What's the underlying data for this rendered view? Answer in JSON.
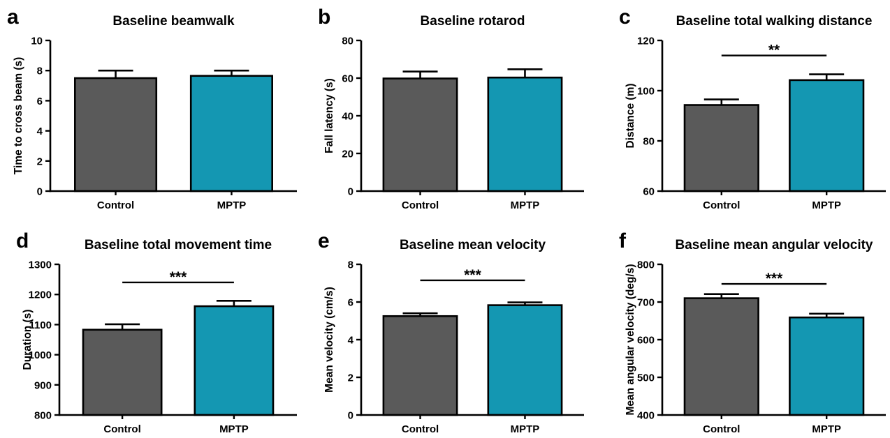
{
  "chart_data": [
    {
      "panel": "a",
      "type": "bar",
      "title": "Baseline beamwalk",
      "ylabel": "Time to cross beam (s)",
      "categories": [
        "Control",
        "MPTP"
      ],
      "values": [
        7.5,
        7.65
      ],
      "errors": [
        0.5,
        0.35
      ],
      "colors": [
        "#5a5a5a",
        "#1497b2"
      ],
      "ylim": [
        0,
        10
      ],
      "yticks": [
        0,
        2,
        4,
        6,
        8,
        10
      ],
      "significance": ""
    },
    {
      "panel": "b",
      "type": "bar",
      "title": "Baseline rotarod",
      "ylabel": "Fall latency (s)",
      "categories": [
        "Control",
        "MPTP"
      ],
      "values": [
        59.8,
        60.3
      ],
      "errors": [
        3.7,
        4.4
      ],
      "colors": [
        "#5a5a5a",
        "#1497b2"
      ],
      "ylim": [
        0,
        80
      ],
      "yticks": [
        0,
        20,
        40,
        60,
        80
      ],
      "significance": ""
    },
    {
      "panel": "c",
      "type": "bar",
      "title": "Baseline total walking distance",
      "ylabel": "Distance (m)",
      "categories": [
        "Control",
        "MPTP"
      ],
      "values": [
        94.3,
        104.2
      ],
      "errors": [
        2.2,
        2.3
      ],
      "colors": [
        "#5a5a5a",
        "#1497b2"
      ],
      "ylim": [
        60,
        120
      ],
      "yticks": [
        60,
        80,
        100,
        120
      ],
      "significance": "**",
      "sig_level": 114
    },
    {
      "panel": "d",
      "type": "bar",
      "title": "Baseline total movement time",
      "ylabel": "Duration (s)",
      "categories": [
        "Control",
        "MPTP"
      ],
      "values": [
        1083,
        1161
      ],
      "errors": [
        18,
        18
      ],
      "colors": [
        "#5a5a5a",
        "#1497b2"
      ],
      "ylim": [
        800,
        1300
      ],
      "yticks": [
        800,
        900,
        1000,
        1100,
        1200,
        1300
      ],
      "significance": "***",
      "sig_level": 1240
    },
    {
      "panel": "e",
      "type": "bar",
      "title": "Baseline mean velocity",
      "ylabel": "Mean velocity (cm/s)",
      "categories": [
        "Control",
        "MPTP"
      ],
      "values": [
        5.25,
        5.83
      ],
      "errors": [
        0.15,
        0.15
      ],
      "colors": [
        "#5a5a5a",
        "#1497b2"
      ],
      "ylim": [
        0,
        8
      ],
      "yticks": [
        0,
        2,
        4,
        6,
        8
      ],
      "significance": "***",
      "sig_level": 7.15
    },
    {
      "panel": "f",
      "type": "bar",
      "title": "Baseline mean angular velocity",
      "ylabel": "Mean angular velocity (deg/s)",
      "categories": [
        "Control",
        "MPTP"
      ],
      "values": [
        710,
        659
      ],
      "errors": [
        11,
        10
      ],
      "colors": [
        "#5a5a5a",
        "#1497b2"
      ],
      "ylim": [
        400,
        800
      ],
      "yticks": [
        400,
        500,
        600,
        700,
        800
      ],
      "significance": "***",
      "sig_level": 748
    }
  ]
}
